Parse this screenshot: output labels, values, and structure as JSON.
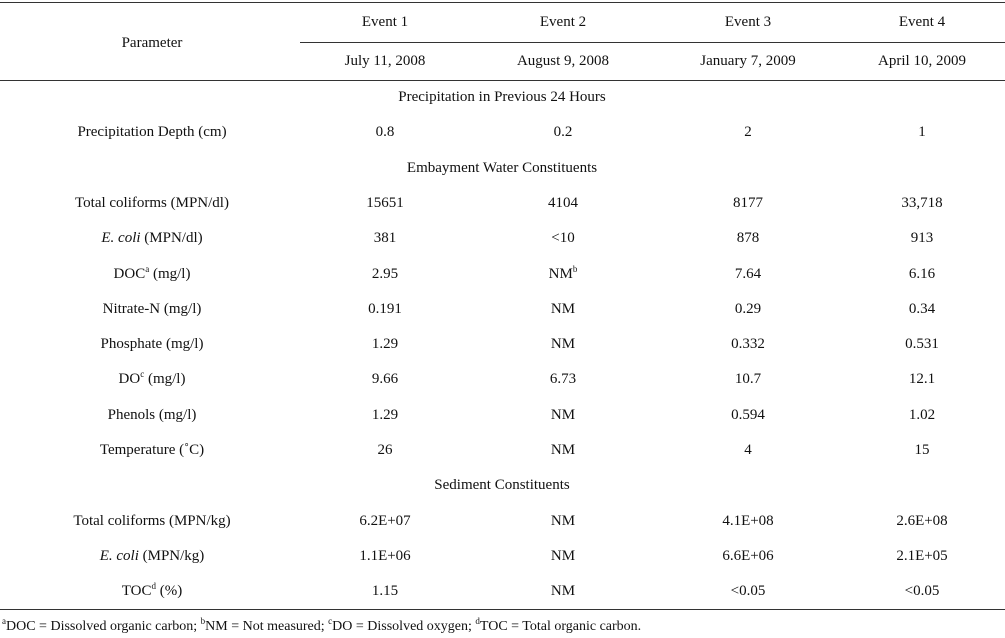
{
  "table": {
    "header": {
      "parameter": "Parameter",
      "events": [
        {
          "name": "Event 1",
          "date": "July 11, 2008"
        },
        {
          "name": "Event 2",
          "date": "August 9, 2008"
        },
        {
          "name": "Event 3",
          "date": "January 7, 2009"
        },
        {
          "name": "Event 4",
          "date": "April 10, 2009"
        }
      ]
    },
    "sections": [
      {
        "title": "Precipitation in Previous 24 Hours",
        "rows": [
          {
            "parameter": {
              "label": "Precipitation Depth (cm)"
            },
            "values": [
              "0.8",
              "0.2",
              "2",
              "1"
            ]
          }
        ]
      },
      {
        "title": "Embayment Water Constituents",
        "rows": [
          {
            "parameter": {
              "label": "Total coliforms (MPN/dl)"
            },
            "values": [
              "15651",
              "4104",
              "8177",
              "33,718"
            ]
          },
          {
            "parameter": {
              "label": "E. coli",
              "italic": true,
              "unit": "(MPN/dl)"
            },
            "values": [
              "381",
              "<10",
              "878",
              "913"
            ]
          },
          {
            "parameter": {
              "label": "DOC",
              "sup": "a",
              "unit": "(mg/l)"
            },
            "values": [
              "2.95",
              {
                "text": "NM",
                "sup": "b"
              },
              "7.64",
              "6.16"
            ]
          },
          {
            "parameter": {
              "label": "Nitrate-N (mg/l)"
            },
            "values": [
              "0.191",
              "NM",
              "0.29",
              "0.34"
            ]
          },
          {
            "parameter": {
              "label": "Phosphate (mg/l)"
            },
            "values": [
              "1.29",
              "NM",
              "0.332",
              "0.531"
            ]
          },
          {
            "parameter": {
              "label": "DO",
              "sup": "c",
              "unit": "(mg/l)"
            },
            "values": [
              "9.66",
              "6.73",
              "10.7",
              "12.1"
            ]
          },
          {
            "parameter": {
              "label": "Phenols (mg/l)"
            },
            "values": [
              "1.29",
              "NM",
              "0.594",
              "1.02"
            ]
          },
          {
            "parameter": {
              "label": "Temperature (˚C)"
            },
            "values": [
              "26",
              "NM",
              "4",
              "15"
            ]
          }
        ]
      },
      {
        "title": "Sediment Constituents",
        "rows": [
          {
            "parameter": {
              "label": "Total coliforms (MPN/kg)"
            },
            "values": [
              "6.2E+07",
              "NM",
              "4.1E+08",
              "2.6E+08"
            ]
          },
          {
            "parameter": {
              "label": "E. coli",
              "italic": true,
              "unit": "(MPN/kg)"
            },
            "values": [
              "1.1E+06",
              "NM",
              "6.6E+06",
              "2.1E+05"
            ]
          },
          {
            "parameter": {
              "label": "TOC",
              "sup": "d",
              "unit": "(%)"
            },
            "values": [
              "1.15",
              "NM",
              "<0.05",
              "<0.05"
            ]
          }
        ]
      }
    ]
  },
  "footnotes": [
    {
      "mark": "a",
      "text": "DOC = Dissolved organic carbon;"
    },
    {
      "mark": "b",
      "text": "NM = Not measured;"
    },
    {
      "mark": "c",
      "text": "DO = Dissolved oxygen;"
    },
    {
      "mark": "d",
      "text": "TOC = Total organic carbon."
    }
  ]
}
